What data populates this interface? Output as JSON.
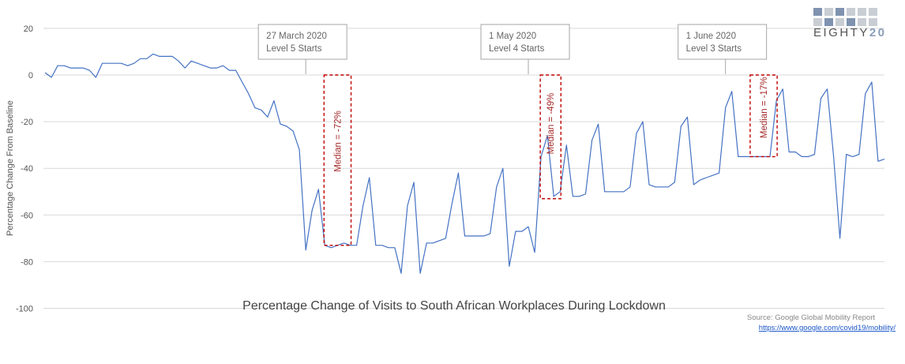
{
  "chart_data": {
    "type": "line",
    "title": "Percentage Change of Visits to South African Workplaces During Lockdown",
    "ylabel": "Percentage Change From Baseline",
    "xlabel": "",
    "ylim": [
      -100,
      20
    ],
    "yticks": [
      20,
      0,
      -20,
      -40,
      -60,
      -80,
      -100
    ],
    "grid": true,
    "series": [
      {
        "color": "#4472c4",
        "values": [
          1,
          -1,
          4,
          4,
          3,
          3,
          3,
          2,
          -1,
          5,
          5,
          5,
          5,
          4,
          5,
          7,
          7,
          9,
          8,
          8,
          8,
          6,
          3,
          6,
          5,
          4,
          3,
          3,
          4,
          2,
          2,
          -3,
          -8,
          -14,
          -15,
          -18,
          -11,
          -21,
          -22,
          -24,
          -32,
          -75,
          -58,
          -49,
          -73,
          -74,
          -73,
          -72,
          -73,
          -73,
          -56,
          -44,
          -73,
          -73,
          -74,
          -74,
          -85,
          -56,
          -46,
          -85,
          -72,
          -72,
          -71,
          -70,
          -55,
          -42,
          -69,
          -69,
          -69,
          -69,
          -68,
          -48,
          -40,
          -82,
          -67,
          -67,
          -65,
          -76,
          -35,
          -26,
          -52,
          -50,
          -30,
          -52,
          -52,
          -51,
          -28,
          -21,
          -50,
          -50,
          -50,
          -50,
          -48,
          -25,
          -20,
          -47,
          -48,
          -48,
          -48,
          -46,
          -22,
          -18,
          -47,
          -45,
          -44,
          -43,
          -42,
          -14,
          -7,
          -35,
          -35,
          -35,
          -35,
          -35,
          -35,
          -11,
          -6,
          -33,
          -33,
          -35,
          -35,
          -34,
          -10,
          -6,
          -35,
          -70,
          -34,
          -35,
          -34,
          -8,
          -3,
          -37,
          -36
        ]
      }
    ],
    "annotations": [
      {
        "date": "27 March 2020",
        "text": "Level  5 Starts",
        "x_index": 41
      },
      {
        "date": "1 May 2020",
        "text": "Level  4 Starts",
        "x_index": 76
      },
      {
        "date": "1 June 2020",
        "text": "Level  3 Starts",
        "x_index": 107
      }
    ],
    "medians": [
      {
        "label": "Median = -72%",
        "from_index": 44,
        "to_index": 48,
        "top": 0,
        "bottom": -73
      },
      {
        "label": "Median = -49%",
        "from_index": 78,
        "to_index": 81,
        "top": 0,
        "bottom": -53
      },
      {
        "label": "Median = -17%",
        "from_index": 111,
        "to_index": 115,
        "top": 0,
        "bottom": -35
      }
    ],
    "source": "Source: Google Global Mobility Report",
    "source_link": "https://www.google.com/covid19/mobility/"
  },
  "logo": {
    "name": "EIGHTY20",
    "text_main": "EIGHTY",
    "text_bold": "20",
    "square_colors": [
      "#7f93b0",
      "#c9cdd4",
      "#7f93b0",
      "#c9cdd4",
      "#c9cdd4",
      "#c9cdd4",
      "#c9cdd4",
      "#7f93b0",
      "#c9cdd4",
      "#7f93b0",
      "#c9cdd4",
      "#c9cdd4"
    ]
  },
  "colors": {
    "line": "#4472c4",
    "grid": "#d9d9d9",
    "median_box": "#c00000",
    "median_text": "#a52a2a"
  }
}
